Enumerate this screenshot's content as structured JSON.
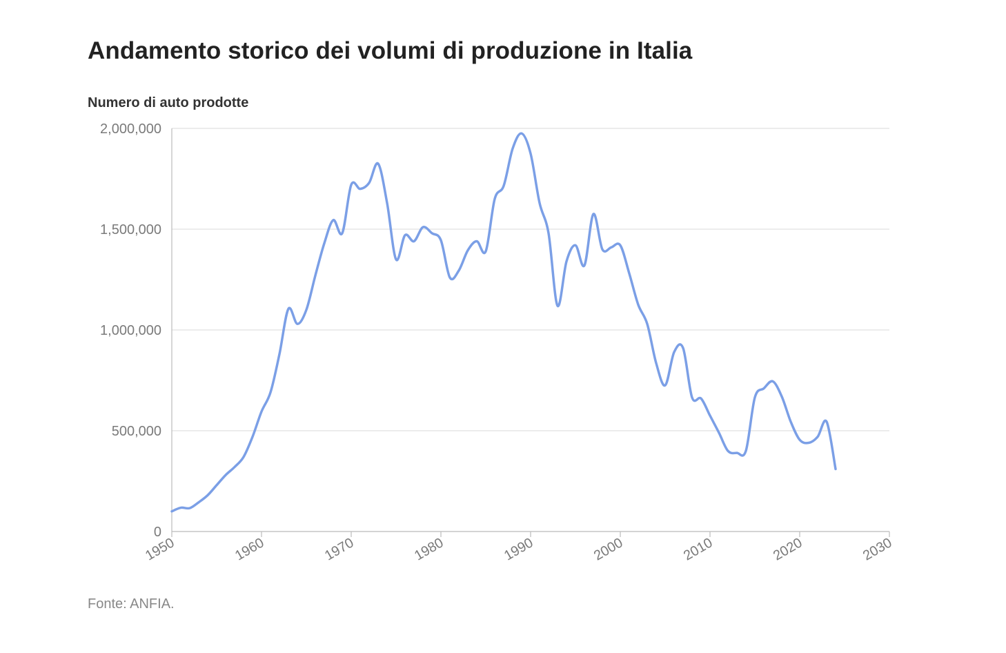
{
  "chart_data": {
    "type": "line",
    "title": "Andamento storico dei volumi di produzione in Italia",
    "ylabel": "Numero di auto prodotte",
    "xlabel": "",
    "source": "Fonte: ANFIA.",
    "xlim": [
      1950,
      2030
    ],
    "ylim": [
      0,
      2000000
    ],
    "x_ticks": [
      1950,
      1960,
      1970,
      1980,
      1990,
      2000,
      2010,
      2020,
      2030
    ],
    "x_tick_labels": [
      "1950",
      "1960",
      "1970",
      "1980",
      "1990",
      "2000",
      "2010",
      "2020",
      "2030"
    ],
    "y_ticks": [
      0,
      500000,
      1000000,
      1500000,
      2000000
    ],
    "y_tick_labels": [
      "0",
      "500,000",
      "1,000,000",
      "1,500,000",
      "2,000,000"
    ],
    "grid": true,
    "line_color": "#7b9fe6",
    "grid_color": "#e6e6e6",
    "axis_color": "#bbbbbb",
    "series": [
      {
        "x": [
          1950,
          1951,
          1952,
          1953,
          1954,
          1955,
          1956,
          1957,
          1958,
          1959,
          1960,
          1961,
          1962,
          1963,
          1964,
          1965,
          1966,
          1967,
          1968,
          1969,
          1970,
          1971,
          1972,
          1973,
          1974,
          1975,
          1976,
          1977,
          1978,
          1979,
          1980,
          1981,
          1982,
          1983,
          1984,
          1985,
          1986,
          1987,
          1988,
          1989,
          1990,
          1991,
          1992,
          1993,
          1994,
          1995,
          1996,
          1997,
          1998,
          1999,
          2000,
          2001,
          2002,
          2003,
          2004,
          2005,
          2006,
          2007,
          2008,
          2009,
          2010,
          2011,
          2012,
          2013,
          2014,
          2015,
          2016,
          2017,
          2018,
          2019,
          2020,
          2021,
          2022,
          2023,
          2024
        ],
        "values": [
          100000,
          118000,
          116000,
          145000,
          180000,
          230000,
          280000,
          320000,
          370000,
          470000,
          595000,
          690000,
          880000,
          1105000,
          1030000,
          1100000,
          1270000,
          1430000,
          1545000,
          1480000,
          1720000,
          1700000,
          1730000,
          1825000,
          1630000,
          1350000,
          1470000,
          1440000,
          1510000,
          1480000,
          1445000,
          1260000,
          1295000,
          1395000,
          1440000,
          1390000,
          1650000,
          1715000,
          1900000,
          1975000,
          1875000,
          1630000,
          1480000,
          1120000,
          1340000,
          1420000,
          1320000,
          1575000,
          1400000,
          1410000,
          1420000,
          1280000,
          1125000,
          1030000,
          835000,
          725000,
          890000,
          910000,
          665000,
          660000,
          575000,
          490000,
          400000,
          390000,
          400000,
          665000,
          710000,
          745000,
          670000,
          545000,
          455000,
          440000,
          470000,
          545000,
          310000
        ]
      }
    ]
  }
}
